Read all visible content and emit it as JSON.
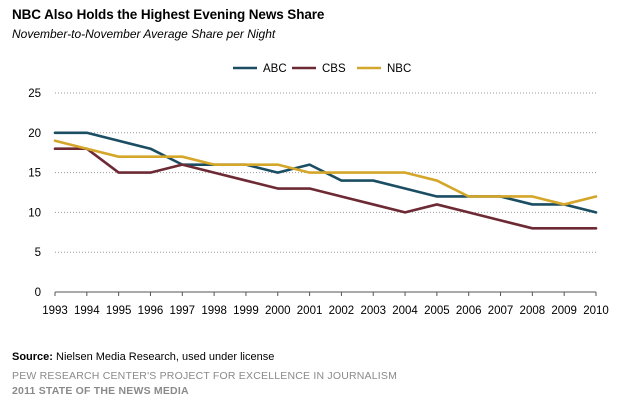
{
  "title": "NBC Also Holds the Highest Evening News Share",
  "subtitle": "November-to-November Average Share per Night",
  "source_label": "Source:",
  "source_text": "Nielsen Media Research, used under license",
  "org": "PEW RESEARCH CENTER'S PROJECT FOR EXCELLENCE IN JOURNALISM",
  "report": "2011 STATE OF THE NEWS MEDIA",
  "chart_data": {
    "type": "line",
    "x": [
      "1993",
      "1994",
      "1995",
      "1996",
      "1997",
      "1998",
      "1999",
      "2000",
      "2001",
      "2002",
      "2003",
      "2004",
      "2005",
      "2006",
      "2007",
      "2008",
      "2009",
      "2010"
    ],
    "series": [
      {
        "name": "ABC",
        "color": "#1c4e63",
        "values": [
          20,
          20,
          19,
          18,
          16,
          16,
          16,
          15,
          16,
          14,
          14,
          13,
          12,
          12,
          12,
          11,
          11,
          10
        ]
      },
      {
        "name": "CBS",
        "color": "#6e2a34",
        "values": [
          18,
          18,
          15,
          15,
          16,
          15,
          14,
          13,
          13,
          12,
          11,
          10,
          11,
          10,
          9,
          8,
          8,
          8
        ]
      },
      {
        "name": "NBC",
        "color": "#d4a62a",
        "values": [
          19,
          18,
          17,
          17,
          17,
          16,
          16,
          16,
          15,
          15,
          15,
          15,
          14,
          12,
          12,
          12,
          11,
          12
        ]
      }
    ],
    "ylim": [
      0,
      25
    ],
    "yticks": [
      0,
      5,
      10,
      15,
      20,
      25
    ],
    "grid": true,
    "legend_position": "top-center"
  }
}
